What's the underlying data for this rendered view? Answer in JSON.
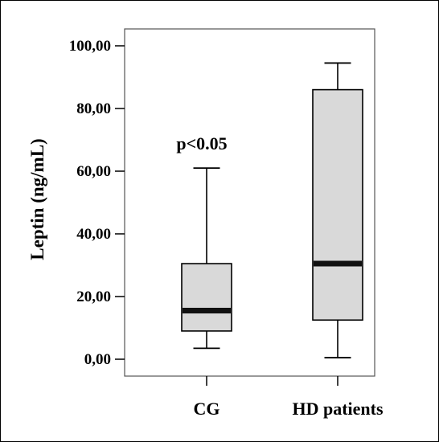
{
  "chart_data": {
    "type": "boxplot",
    "title": "",
    "xlabel": "",
    "ylabel": "Leptin (ng/mL)",
    "ylim": [
      0,
      100
    ],
    "yticks": [
      "0,00",
      "20,00",
      "40,00",
      "60,00",
      "80,00",
      "100,00"
    ],
    "ytick_values": [
      0,
      20,
      40,
      60,
      80,
      100
    ],
    "grid": false,
    "categories": [
      "CG",
      "HD patients"
    ],
    "boxes": [
      {
        "category": "CG",
        "min": 3.5,
        "q1": 9,
        "median": 15.5,
        "q3": 30.5,
        "max": 61
      },
      {
        "category": "HD patients",
        "min": 0.5,
        "q1": 12.5,
        "median": 30.5,
        "q3": 86,
        "max": 94.5
      }
    ],
    "annotation": {
      "text": "p<0.05",
      "category": "CG",
      "value": 68
    },
    "colors": {
      "box_fill": "#d9d9d9",
      "stroke": "#000000",
      "median": "#111111"
    }
  }
}
